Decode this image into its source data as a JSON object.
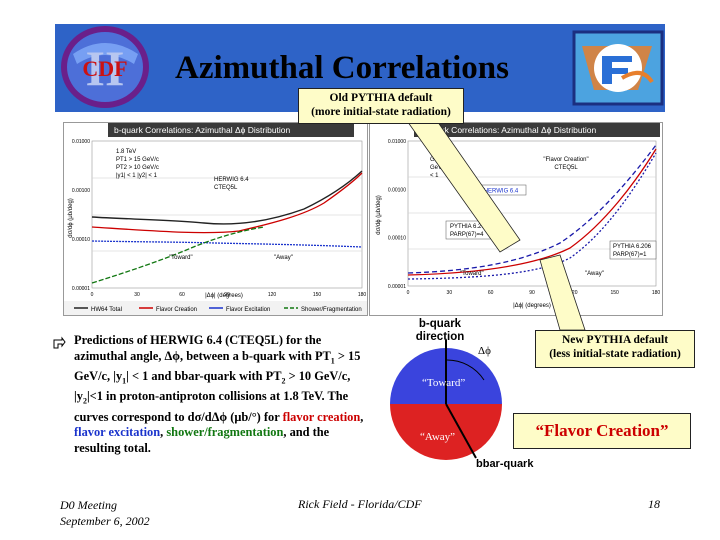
{
  "slide": {
    "title": "Azimuthal Correlations",
    "callout_old": [
      "Old PYTHIA default",
      "(more initial-state radiation)"
    ],
    "callout_new": [
      "New PYTHIA default",
      "(less initial-state radiation)"
    ],
    "flavor_creation_label": "“Flavor Creation”",
    "logo_left_text": "CDF",
    "logo_left_numeral": "II",
    "colors": {
      "banner": "#2e63c7",
      "callout": "#fefcc8",
      "flavor_creation": "#cc0000",
      "flavor_excitation": "#1a33cc",
      "shower": "#117711"
    }
  },
  "left_plot": {
    "title": "b-quark Correlations: Azimuthal Δϕ Distribution",
    "y_ticks": [
      "0.01000",
      "0.00100",
      "0.00010",
      "0.00001"
    ],
    "x_ticks": [
      "0",
      "30",
      "60",
      "90",
      "120",
      "150",
      "180"
    ],
    "xlabel": "|Δϕ| (degrees)",
    "ylabel": "dσ/dϕ (μb/deg)",
    "conditions": [
      "1.8 TeV",
      "PT1 > 15 GeV/c",
      "PT2 > 10 GeV/c",
      "|y1| < 1  |y2| < 1"
    ],
    "generator": [
      "HERWIG 6.4",
      "CTEQ5L"
    ],
    "toward": "\"Toward\"",
    "away": "\"Away\"",
    "legend": [
      "HW64 Total",
      "Flavor Creation",
      "Flavor Excitation",
      "Shower/Fragmentation"
    ]
  },
  "right_plot": {
    "title": "b-quark Correlations: Azimuthal Δϕ Distribution",
    "y_ticks": [
      "0.01000",
      "0.00100",
      "0.00010",
      "0.00001"
    ],
    "x_ticks": [
      "0",
      "30",
      "60",
      "90",
      "120",
      "150",
      "180"
    ],
    "xlabel": "|Δϕ| (degrees)",
    "ylabel": "dσ/dϕ (μb/deg)",
    "conditions": [
      "1.8 TeV",
      "GeV/c",
      "GeV/c",
      "< 1"
    ],
    "fc_label": [
      "\"Flavor Creation\"",
      "CTEQ5L"
    ],
    "herwig_label": "HERWIG 6.4",
    "pythia_a": [
      "PYTHIA 6.206",
      "PARP(67)=4"
    ],
    "pythia_b": [
      "PYTHIA 6.206",
      "PARP(67)=1"
    ],
    "toward": "\"Toward\"",
    "away": "\"Away\""
  },
  "bullet": {
    "segments": [
      {
        "text": "Predictions of  HERWIG 6.4 (CTEQ5L) for the azimuthal angle, Δϕ, between a b-quark with PT",
        "color": "#000"
      },
      {
        "text": "1",
        "sub": true
      },
      {
        "text": " > 15 GeV/c, |y",
        "color": "#000"
      },
      {
        "text": "1",
        "sub": true
      },
      {
        "text": "| < 1 and bbar-quark with PT",
        "color": "#000"
      },
      {
        "text": "2",
        "sub": true
      },
      {
        "text": " > 10 GeV/c, |y",
        "color": "#000"
      },
      {
        "text": "2",
        "sub": true
      },
      {
        "text": "|<1 in proton-antiproton collisions at 1.8 TeV.  The curves correspond to dσ/dΔϕ (μb/°) for ",
        "color": "#000"
      },
      {
        "text": "flavor creation",
        "color": "#cc0000"
      },
      {
        "text": ", ",
        "color": "#000"
      },
      {
        "text": "flavor excitation",
        "color": "#1a33cc"
      },
      {
        "text": ", ",
        "color": "#000"
      },
      {
        "text": "shower/fragmentation",
        "color": "#117711"
      },
      {
        "text": ", and the resulting total.",
        "color": "#000"
      }
    ]
  },
  "diagram": {
    "bquark_dir": [
      "b-quark",
      "direction"
    ],
    "dphi": "Δϕ",
    "toward": "“Toward”",
    "away": "“Away”",
    "bbar": "bbar-quark"
  },
  "footer": {
    "meeting": [
      "D0 Meeting",
      "September 6, 2002"
    ],
    "author": "Rick Field - Florida/CDF",
    "page": "18"
  }
}
